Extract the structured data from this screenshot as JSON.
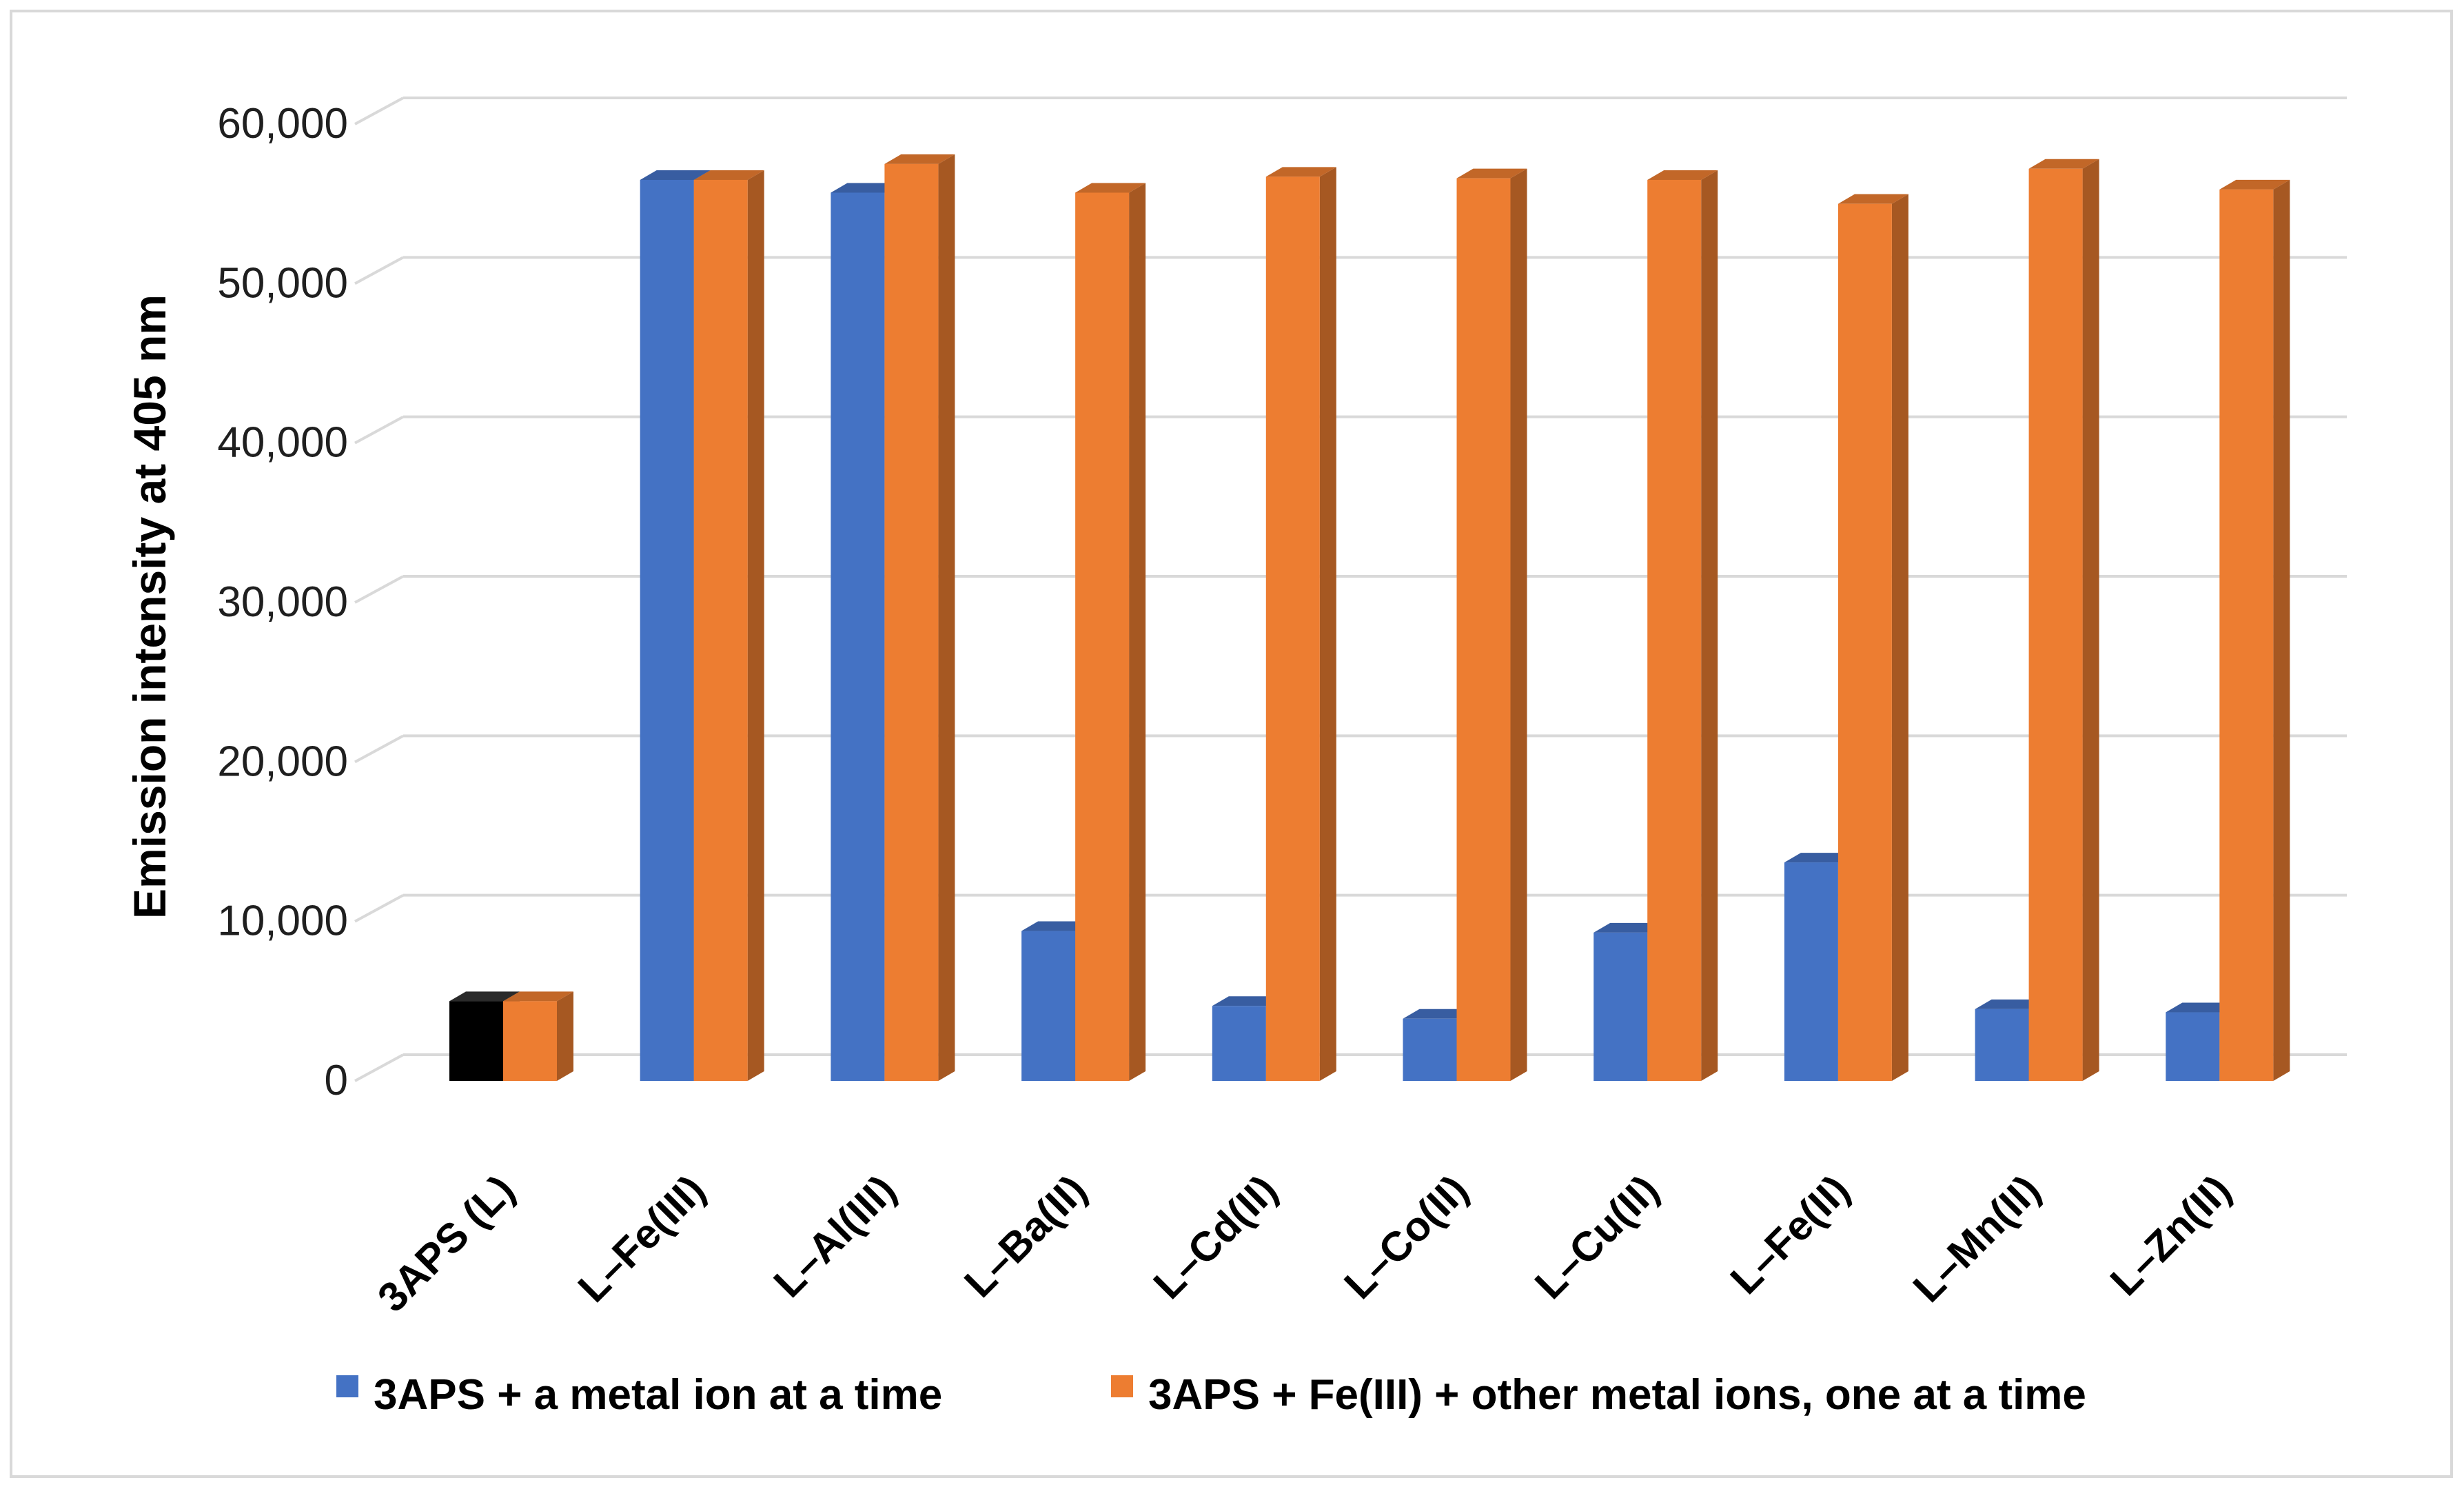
{
  "chart_data": {
    "type": "bar",
    "title": "",
    "xlabel": "",
    "ylabel": "Emission intensity at 405 nm",
    "ylim": [
      0,
      60000
    ],
    "yticks": [
      0,
      10000,
      20000,
      30000,
      40000,
      50000,
      60000
    ],
    "ytick_labels": [
      "0",
      "10,000",
      "20,000",
      "30,000",
      "40,000",
      "50,000",
      "60,000"
    ],
    "grid": true,
    "legend_position": "bottom",
    "categories": [
      "3APS (L)",
      "L–Fe(III)",
      "L–Al(III)",
      "L–Ba(II)",
      "L–Cd(II)",
      "L–Co(II)",
      "L–Cu(II)",
      "L–Fe(II)",
      "L–Mn(II)",
      "L–Zn(II)"
    ],
    "series": [
      {
        "name": "3APS + a metal ion at a time",
        "color": "#4472c4",
        "first_bar_color": "#000000",
        "values": [
          5000,
          56500,
          55700,
          9400,
          4700,
          3900,
          9300,
          13700,
          4500,
          4300
        ]
      },
      {
        "name": "3APS + Fe(III) + other metal ions, one at a time",
        "color": "#ed7d31",
        "values": [
          5000,
          56500,
          57500,
          55700,
          56700,
          56600,
          56500,
          55000,
          57200,
          55900
        ]
      }
    ]
  }
}
